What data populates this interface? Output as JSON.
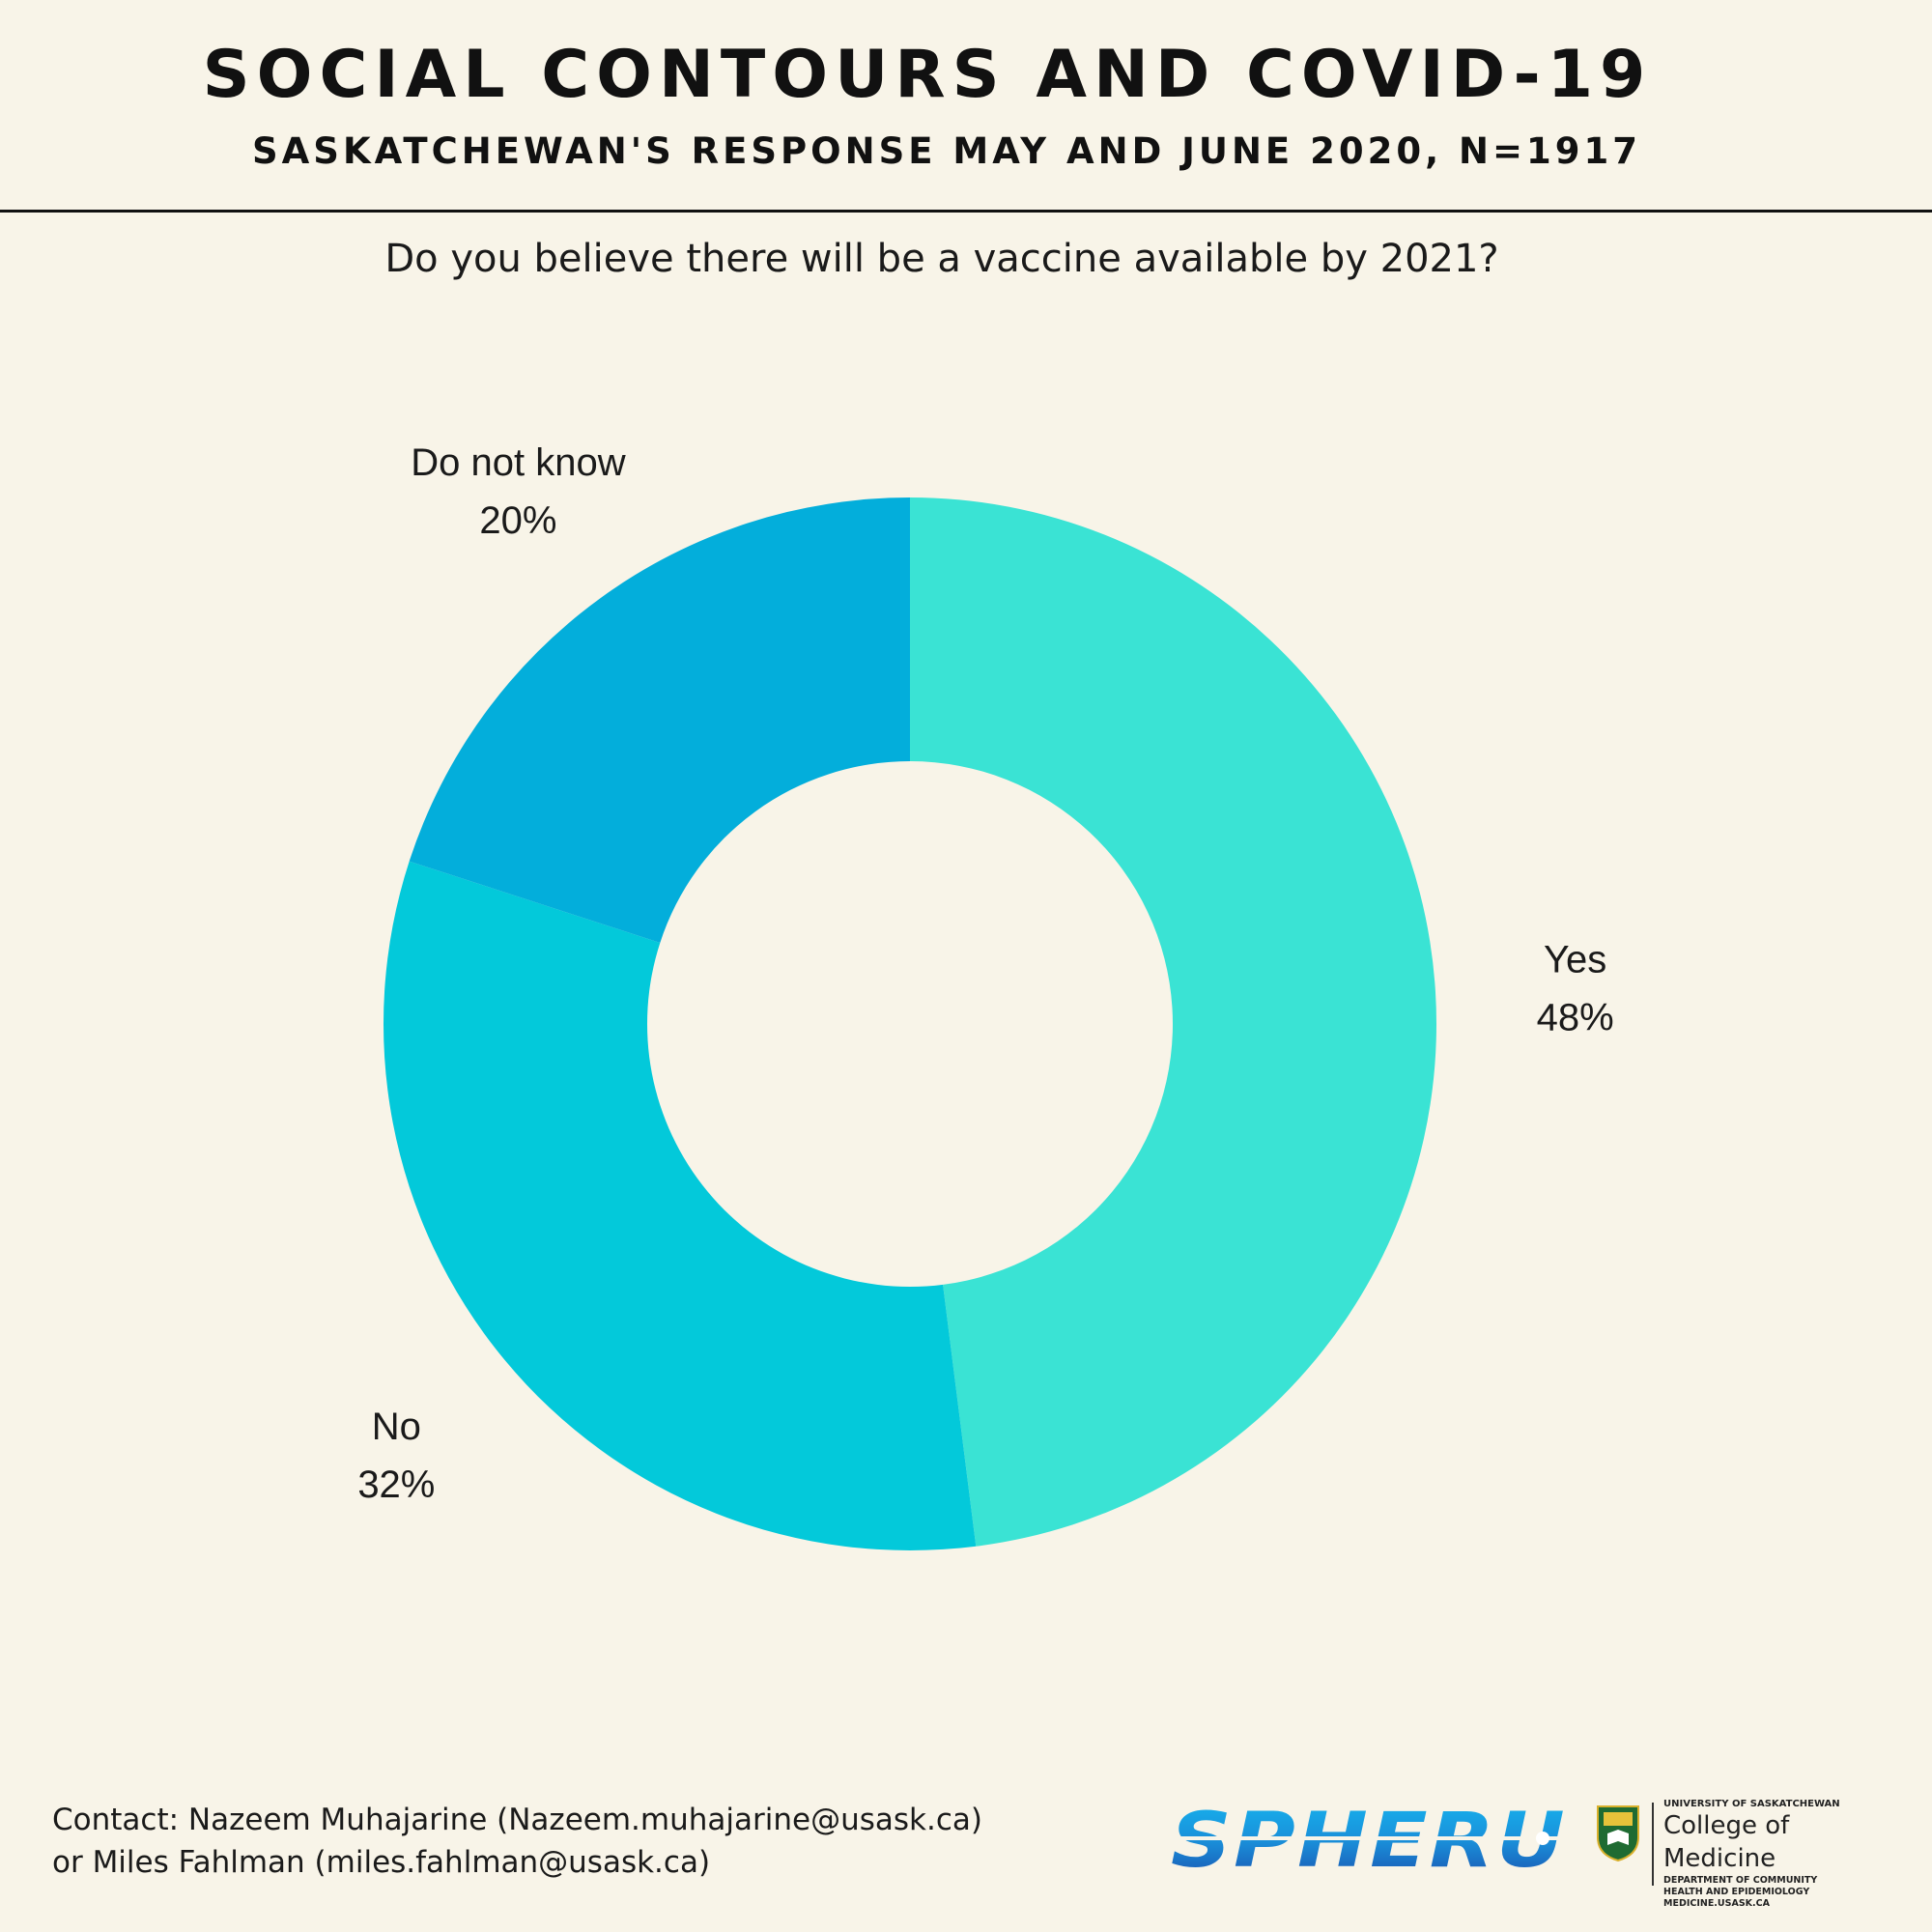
{
  "header": {
    "title": "SOCIAL CONTOURS AND COVID-19",
    "subtitle": "SASKATCHEWAN'S RESPONSE MAY AND JUNE 2020, N=1917"
  },
  "question": "Do you believe there will be a vaccine available by 2021?",
  "chart_data": {
    "type": "pie",
    "subtype": "donut",
    "title": "Do you believe there will be a vaccine available by 2021?",
    "categories": [
      "Yes",
      "No",
      "Do not know"
    ],
    "values": [
      48,
      32,
      20
    ],
    "value_labels": [
      "48%",
      "32%",
      "20%"
    ],
    "colors": [
      "#3ae3d4",
      "#03c9da",
      "#03aedb"
    ],
    "start": "12 o'clock, clockwise"
  },
  "footer": {
    "contact_line1": "Contact: Nazeem Muhajarine (Nazeem.muhajarine@usask.ca)",
    "contact_line2": "or Miles Fahlman (miles.fahlman@usask.ca)",
    "logo_spheru": "SPHERU",
    "university": "UNIVERSITY OF SASKATCHEWAN",
    "college": "College of Medicine",
    "department_line1": "DEPARTMENT OF COMMUNITY",
    "department_line2": "HEALTH AND EPIDEMIOLOGY",
    "website": "MEDICINE.USASK.CA"
  }
}
